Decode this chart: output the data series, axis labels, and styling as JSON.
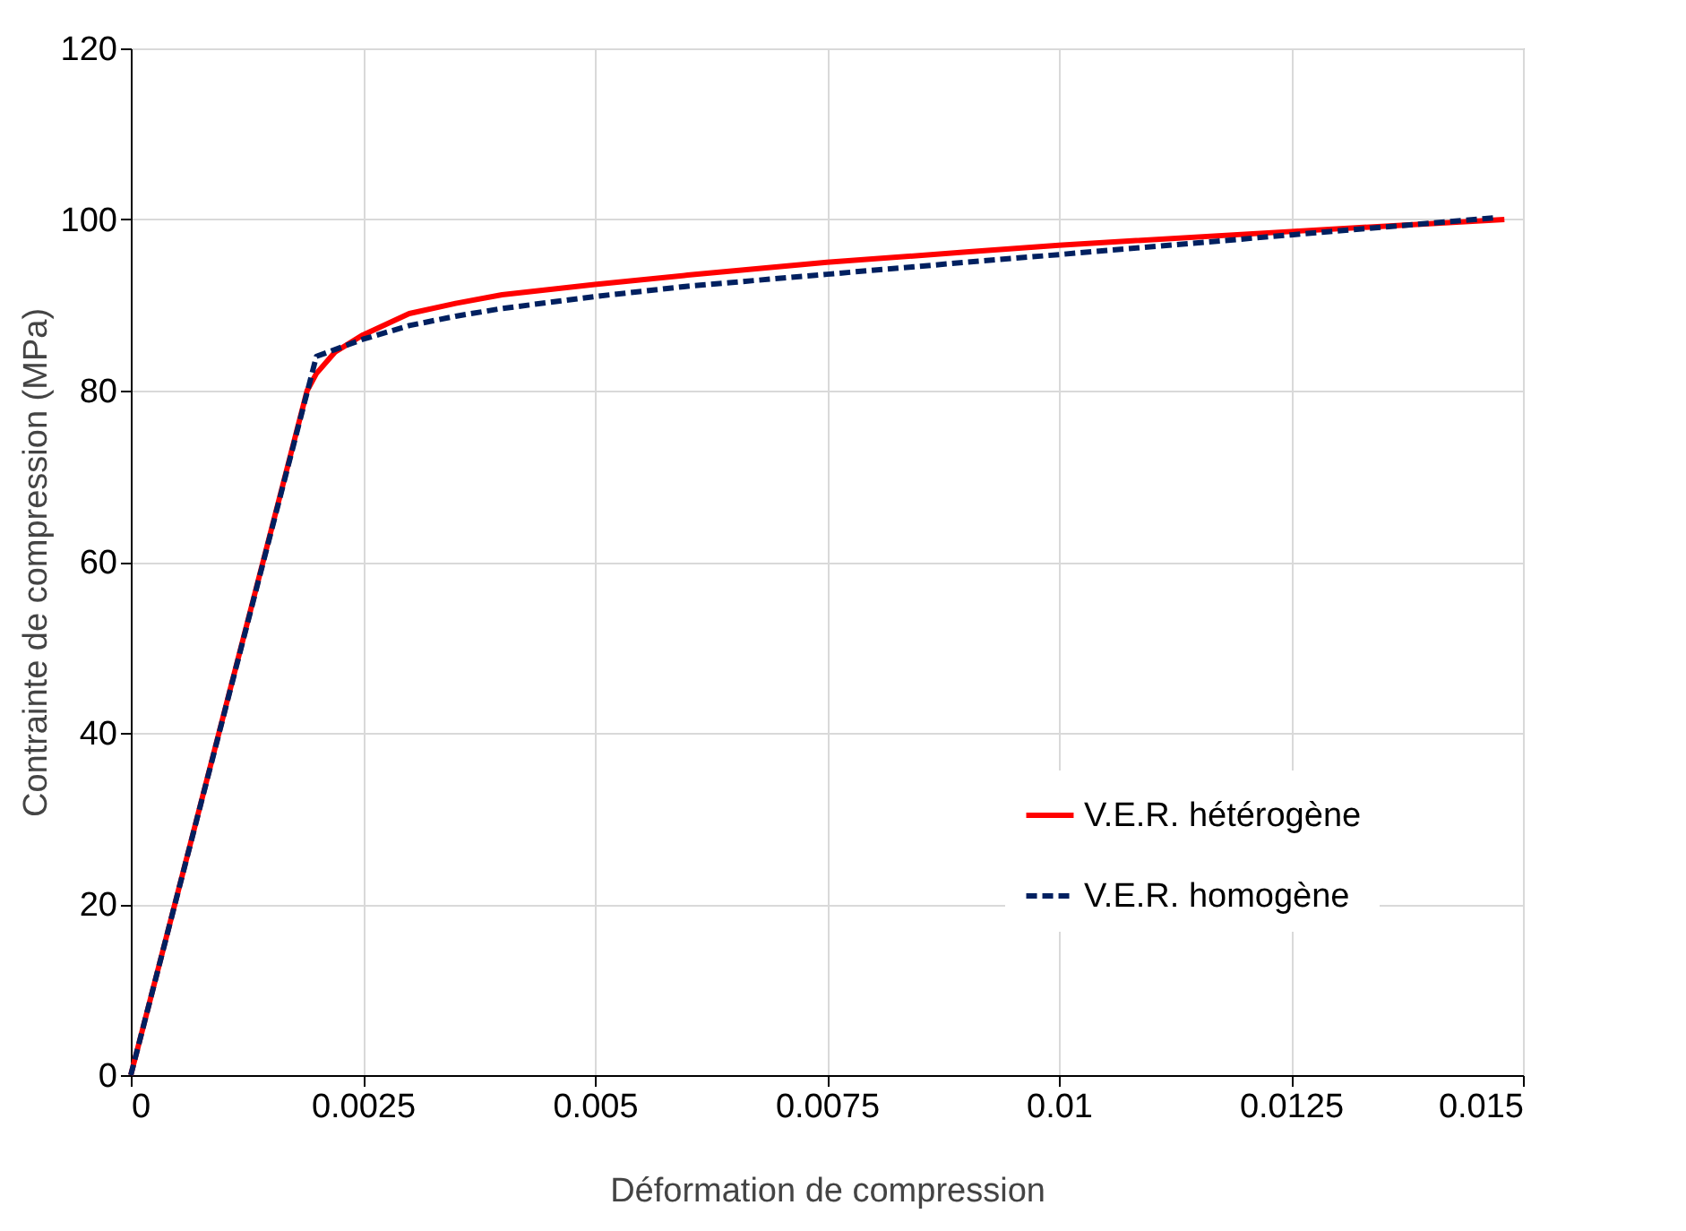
{
  "chart_data": {
    "type": "line",
    "xlabel": "Déformation de compression",
    "ylabel": "Contrainte de compression (MPa)",
    "xlim": [
      0,
      0.015
    ],
    "xticks": [
      0,
      0.0025,
      0.005,
      0.0075,
      0.01,
      0.0125,
      0.015
    ],
    "ylim": [
      0,
      120
    ],
    "yticks": [
      0,
      20,
      40,
      60,
      80,
      100,
      120
    ],
    "grid": true,
    "legend": "bottom right",
    "marker": "none",
    "series": [
      {
        "name": "V.E.R. hétérogène",
        "color": "#ff0000",
        "line_style": "solid",
        "x": [
          0,
          0.0019,
          0.002,
          0.0022,
          0.0025,
          0.003,
          0.0035,
          0.004,
          0.005,
          0.006,
          0.0075,
          0.009,
          0.01,
          0.0125,
          0.0148
        ],
        "values": [
          0,
          80,
          82,
          84.5,
          86.5,
          89,
          90.2,
          91.2,
          92.4,
          93.5,
          95,
          96.2,
          97,
          98.6,
          100
        ]
      },
      {
        "name": "V.E.R. homogène",
        "color": "#002060",
        "line_style": "dashed",
        "x": [
          0,
          0.002,
          0.0025,
          0.003,
          0.0035,
          0.004,
          0.005,
          0.006,
          0.0075,
          0.009,
          0.01,
          0.0125,
          0.0147
        ],
        "values": [
          0,
          84,
          86,
          87.6,
          88.7,
          89.6,
          91,
          92.2,
          93.6,
          95,
          95.9,
          98.2,
          100.2
        ]
      }
    ]
  }
}
